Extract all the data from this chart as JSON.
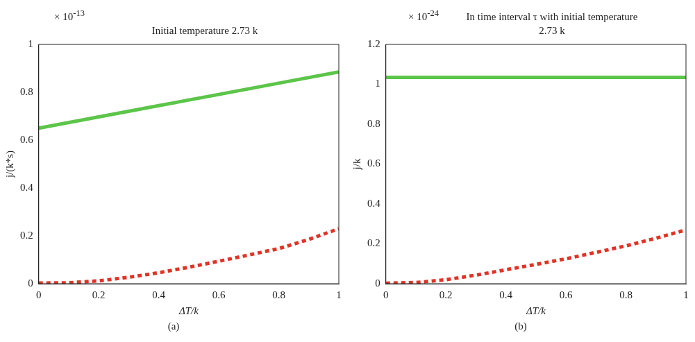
{
  "chart_data": [
    {
      "type": "line",
      "title": "Initial temperature 2.73 k",
      "xlabel": "ΔT/k",
      "ylabel": "j/(k*s)",
      "annotations": [
        "× 10$^{-13}$",
        "(a)"
      ],
      "xlim": [
        0,
        1
      ],
      "xticks": [
        0,
        0.2,
        0.4,
        0.6,
        0.8,
        1
      ],
      "ylim": [
        0,
        1
      ],
      "yticks": [
        0,
        0.2,
        0.4,
        0.6,
        0.8,
        1
      ],
      "grid": false,
      "legend": false,
      "marker": "none",
      "series": [
        {
          "color": "#5cc54a",
          "line_style": "solid",
          "x": [
            0,
            0.2,
            0.4,
            0.6,
            0.8,
            1
          ],
          "values": [
            0.65,
            0.697,
            0.744,
            0.791,
            0.838,
            0.885
          ]
        },
        {
          "color": "#e03325",
          "line_style": "dashed",
          "x": [
            0,
            0.1,
            0.2,
            0.3,
            0.4,
            0.5,
            0.6,
            0.7,
            0.8,
            0.9,
            1
          ],
          "values": [
            0.003,
            0.004,
            0.012,
            0.027,
            0.046,
            0.069,
            0.094,
            0.12,
            0.147,
            0.185,
            0.23
          ]
        }
      ]
    },
    {
      "type": "line",
      "title": "In time interval τ with initial temperature 2.73 k",
      "xlabel": "ΔT/k",
      "ylabel": "j/k",
      "annotations": [
        "× 10$^{-24}$",
        "(b)"
      ],
      "xlim": [
        0,
        1
      ],
      "xticks": [
        0,
        0.2,
        0.4,
        0.6,
        0.8,
        1
      ],
      "ylim": [
        0,
        1.2
      ],
      "yticks": [
        0,
        0.2,
        0.4,
        0.6,
        0.8,
        1,
        1.2
      ],
      "grid": false,
      "legend": false,
      "marker": "none",
      "series": [
        {
          "color": "#5cc54a",
          "line_style": "solid",
          "x": [
            0,
            1
          ],
          "values": [
            1.035,
            1.035
          ]
        },
        {
          "color": "#e03325",
          "line_style": "dashed",
          "x": [
            0,
            0.1,
            0.2,
            0.3,
            0.4,
            0.5,
            0.6,
            0.7,
            0.8,
            0.9,
            1
          ],
          "values": [
            0.003,
            0.006,
            0.02,
            0.043,
            0.07,
            0.097,
            0.125,
            0.157,
            0.19,
            0.228,
            0.27
          ]
        }
      ]
    }
  ]
}
